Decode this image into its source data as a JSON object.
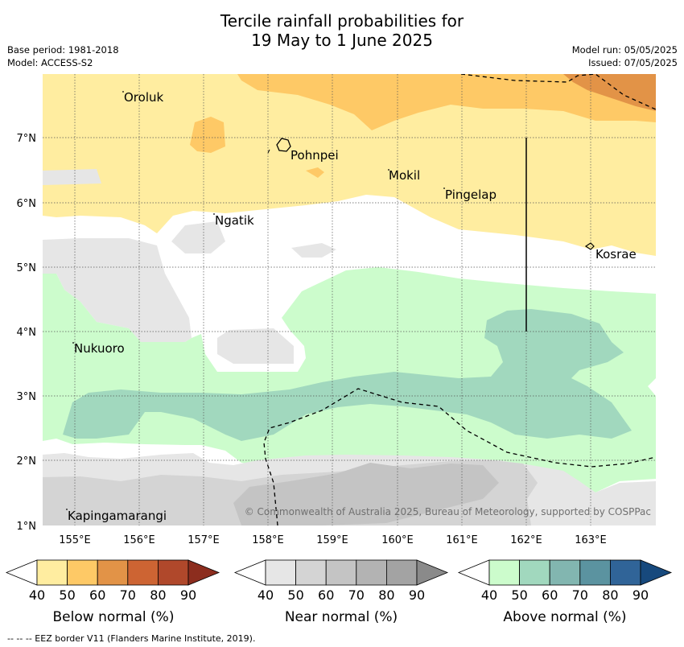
{
  "title": {
    "line1": "Tercile rainfall probabilities for",
    "line2": "19 May to 1 June 2025"
  },
  "meta": {
    "base_period": "Base period: 1981-2018",
    "model": "Model: ACCESS-S2",
    "model_run": "Model run: 05/05/2025",
    "issued": "Issued: 07/05/2025"
  },
  "map": {
    "lon_ticks": [
      "155°E",
      "156°E",
      "157°E",
      "158°E",
      "159°E",
      "160°E",
      "161°E",
      "162°E",
      "163°E"
    ],
    "lat_ticks": [
      "7°N",
      "6°N",
      "5°N",
      "4°N",
      "3°N",
      "2°N",
      "1°N"
    ],
    "places": [
      "Oroluk",
      "Pohnpei",
      "Mokil",
      "Pingelap",
      "Ngatik",
      "Kosrae",
      "Nukuoro",
      "Kapingamarangi"
    ],
    "copyright": "© Commonwealth of Australia 2025, Bureau of Meteorology, supported by COSPPac"
  },
  "legends": [
    {
      "title": "Below normal (%)",
      "ticks": [
        "40",
        "50",
        "60",
        "70",
        "80",
        "90"
      ],
      "colors": [
        "#ffeda0",
        "#fec966",
        "#e29347",
        "#cd6433",
        "#b0482b",
        "#8c2d1e"
      ]
    },
    {
      "title": "Near normal (%)",
      "ticks": [
        "40",
        "50",
        "60",
        "70",
        "80",
        "90"
      ],
      "colors": [
        "#e6e6e6",
        "#d4d4d4",
        "#c4c4c4",
        "#b3b3b3",
        "#a3a3a3",
        "#8a8a8a"
      ]
    },
    {
      "title": "Above normal (%)",
      "ticks": [
        "40",
        "50",
        "60",
        "70",
        "80",
        "90"
      ],
      "colors": [
        "#ccfccc",
        "#a1d8be",
        "#82b6b0",
        "#5b93a0",
        "#306498",
        "#17497d"
      ]
    }
  ],
  "footer": "--  --  -- EEZ border V11 (Flanders Marine Institute, 2019)."
}
